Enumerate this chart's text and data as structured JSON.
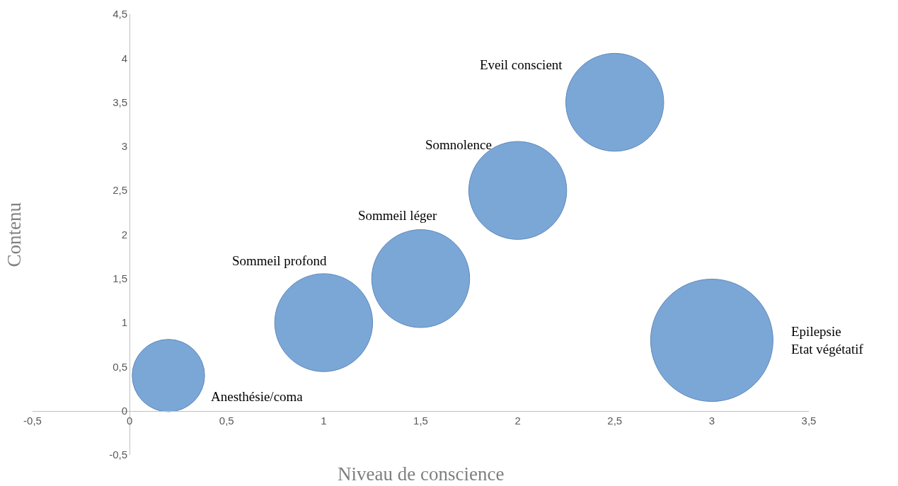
{
  "chart_data": {
    "type": "bubble",
    "xlabel": "Niveau de conscience",
    "ylabel": "Contenu",
    "x": [
      0.2,
      1,
      1.5,
      2,
      2.5,
      3
    ],
    "values": [
      0.4,
      1,
      1.5,
      2.5,
      3.5,
      0.8
    ],
    "sizes": [
      0.35,
      0.64,
      0.64,
      0.64,
      0.64,
      1
    ],
    "color": "#7ba7d7",
    "xlim": [
      -0.5,
      3.5
    ],
    "xticks": [
      {
        "value": -0.5,
        "label": "-0,5"
      },
      0,
      {
        "value": 0.5,
        "label": "0,5"
      },
      1,
      {
        "value": 1.5,
        "label": "1,5"
      },
      2,
      {
        "value": 2.5,
        "label": "2,5"
      },
      3,
      {
        "value": 3.5,
        "label": "3,5"
      }
    ],
    "ylim": [
      -0.5,
      4.5
    ],
    "yticks": [
      {
        "value": -0.5,
        "label": "-0,5"
      },
      0,
      {
        "value": 0.5,
        "label": "0,5"
      },
      1,
      {
        "value": 1.5,
        "label": "1,5"
      },
      2,
      {
        "value": 2.5,
        "label": "2,5"
      },
      3,
      {
        "value": 3.5,
        "label": "3,5"
      },
      4,
      {
        "value": 4.5,
        "label": "4,5"
      }
    ],
    "annotations": [
      "Anesthésie/coma",
      "Sommeil profond",
      "Sommeil léger",
      "Somnolence",
      "Eveil conscient",
      "Epilepsie\nEtat végétatif"
    ]
  }
}
